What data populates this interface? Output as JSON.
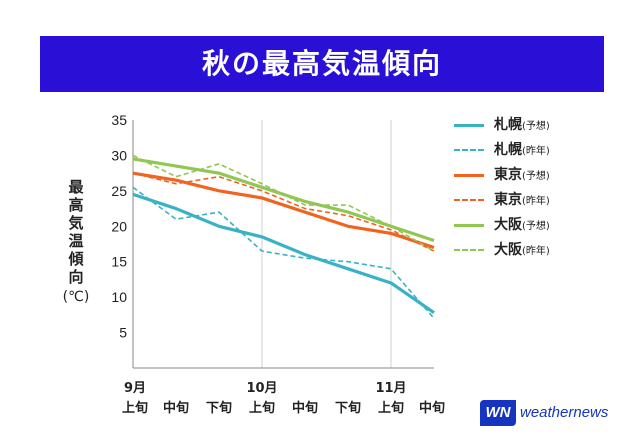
{
  "title": "秋の最高気温傾向",
  "ylabel": "最高気温傾向",
  "yunit": "(℃)",
  "logo": {
    "mark": "WN",
    "word": "weathernews"
  },
  "chart_data": {
    "type": "line",
    "title": "秋の最高気温傾向",
    "ylabel": "最高気温傾向 (℃)",
    "ylim": [
      0,
      35
    ],
    "yticks": [
      5,
      10,
      15,
      20,
      25,
      30,
      35
    ],
    "grid": "vertical lines at month starts",
    "legend": "right",
    "x": [
      {
        "month": "9月",
        "period": "上旬"
      },
      {
        "month": "",
        "period": "中旬"
      },
      {
        "month": "",
        "period": "下旬"
      },
      {
        "month": "10月",
        "period": "上旬"
      },
      {
        "month": "",
        "period": "中旬"
      },
      {
        "month": "",
        "period": "下旬"
      },
      {
        "month": "11月",
        "period": "上旬"
      },
      {
        "month": "",
        "period": "中旬"
      }
    ],
    "series": [
      {
        "name": "札幌",
        "tag": "(予想)",
        "color": "#3ab2c6",
        "style": "solid",
        "values": [
          24.5,
          22.5,
          20,
          18.5,
          16,
          14,
          12,
          7.8
        ]
      },
      {
        "name": "札幌",
        "tag": "(昨年)",
        "color": "#3ab2c6",
        "style": "dashed",
        "values": [
          25.5,
          21,
          22,
          16.5,
          15.5,
          15,
          14,
          7
        ]
      },
      {
        "name": "東京",
        "tag": "(予想)",
        "color": "#f06420",
        "style": "solid",
        "values": [
          27.5,
          26.5,
          25,
          24,
          22,
          20,
          19,
          17
        ]
      },
      {
        "name": "東京",
        "tag": "(昨年)",
        "color": "#f06420",
        "style": "dashed",
        "values": [
          27.5,
          26,
          27,
          25,
          22.5,
          21.5,
          19.5,
          16.5
        ]
      },
      {
        "name": "大阪",
        "tag": "(予想)",
        "color": "#90c753",
        "style": "solid",
        "values": [
          29.5,
          28.5,
          27.5,
          25.5,
          23.5,
          22,
          20,
          18
        ]
      },
      {
        "name": "大阪",
        "tag": "(昨年)",
        "color": "#90c753",
        "style": "dashed",
        "values": [
          30,
          27,
          28.8,
          26,
          23,
          23,
          20,
          16.5
        ]
      }
    ]
  }
}
